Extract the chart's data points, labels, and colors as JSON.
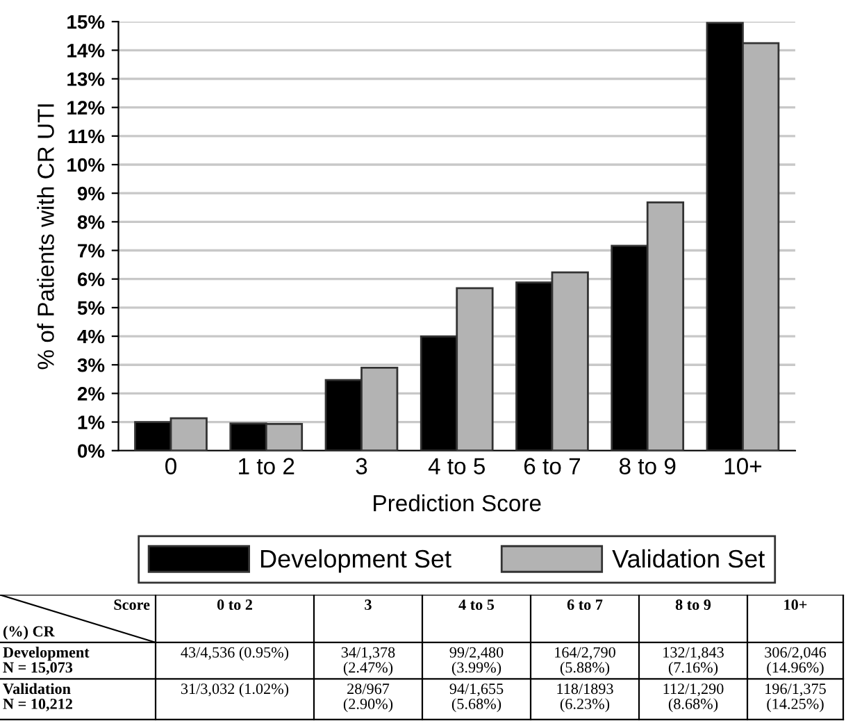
{
  "chart_data": {
    "type": "bar",
    "xlabel": "Prediction Score",
    "ylabel": "% of Patients with CR UTI",
    "categories": [
      "0",
      "1 to 2",
      "3",
      "4 to 5",
      "6 to 7",
      "8 to 9",
      "10+"
    ],
    "series": [
      {
        "name": "Development Set",
        "color": "#000000",
        "values": [
          1.0,
          0.95,
          2.47,
          3.99,
          5.88,
          7.16,
          14.96
        ]
      },
      {
        "name": "Validation Set",
        "color": "#b3b3b3",
        "values": [
          1.13,
          0.93,
          2.9,
          5.68,
          6.23,
          8.68,
          14.25
        ]
      }
    ],
    "ylim": [
      0,
      15
    ],
    "yticks": [
      {
        "value": 0,
        "label": "0%"
      },
      {
        "value": 1,
        "label": "1%"
      },
      {
        "value": 2,
        "label": "2%"
      },
      {
        "value": 3,
        "label": "3%"
      },
      {
        "value": 4,
        "label": "4%"
      },
      {
        "value": 5,
        "label": "5%"
      },
      {
        "value": 6,
        "label": "6%"
      },
      {
        "value": 7,
        "label": "7%"
      },
      {
        "value": 8,
        "label": "8%"
      },
      {
        "value": 9,
        "label": "9%"
      },
      {
        "value": 10,
        "label": "10%"
      },
      {
        "value": 11,
        "label": "11%"
      },
      {
        "value": 12,
        "label": "12%"
      },
      {
        "value": 13,
        "label": "13%"
      },
      {
        "value": 14,
        "label": "14%"
      },
      {
        "value": 15,
        "label": "15%"
      }
    ],
    "grid": "y",
    "legend": "bottom",
    "annotations": [
      "Score",
      "(%) CR",
      "0 to 2",
      "3",
      "4 to 5",
      "6 to 7",
      "8 to 9",
      "10+",
      "Development\nN = 15,073",
      "43/4,536 (0.95%)",
      "34/1,378\n(2.47%)",
      "99/2,480\n(3.99%)",
      "164/2,790\n(5.88%)",
      "132/1,843\n(7.16%)",
      "306/2,046\n(14.96%)",
      "Validation\nN = 10,212",
      "31/3,032 (1.02%)",
      "28/967\n(2.90%)",
      "94/1,655\n(5.68%)",
      "118/1893\n(6.23%)",
      "112/1,290\n(8.68%)",
      "196/1,375\n(14.25%)"
    ]
  }
}
